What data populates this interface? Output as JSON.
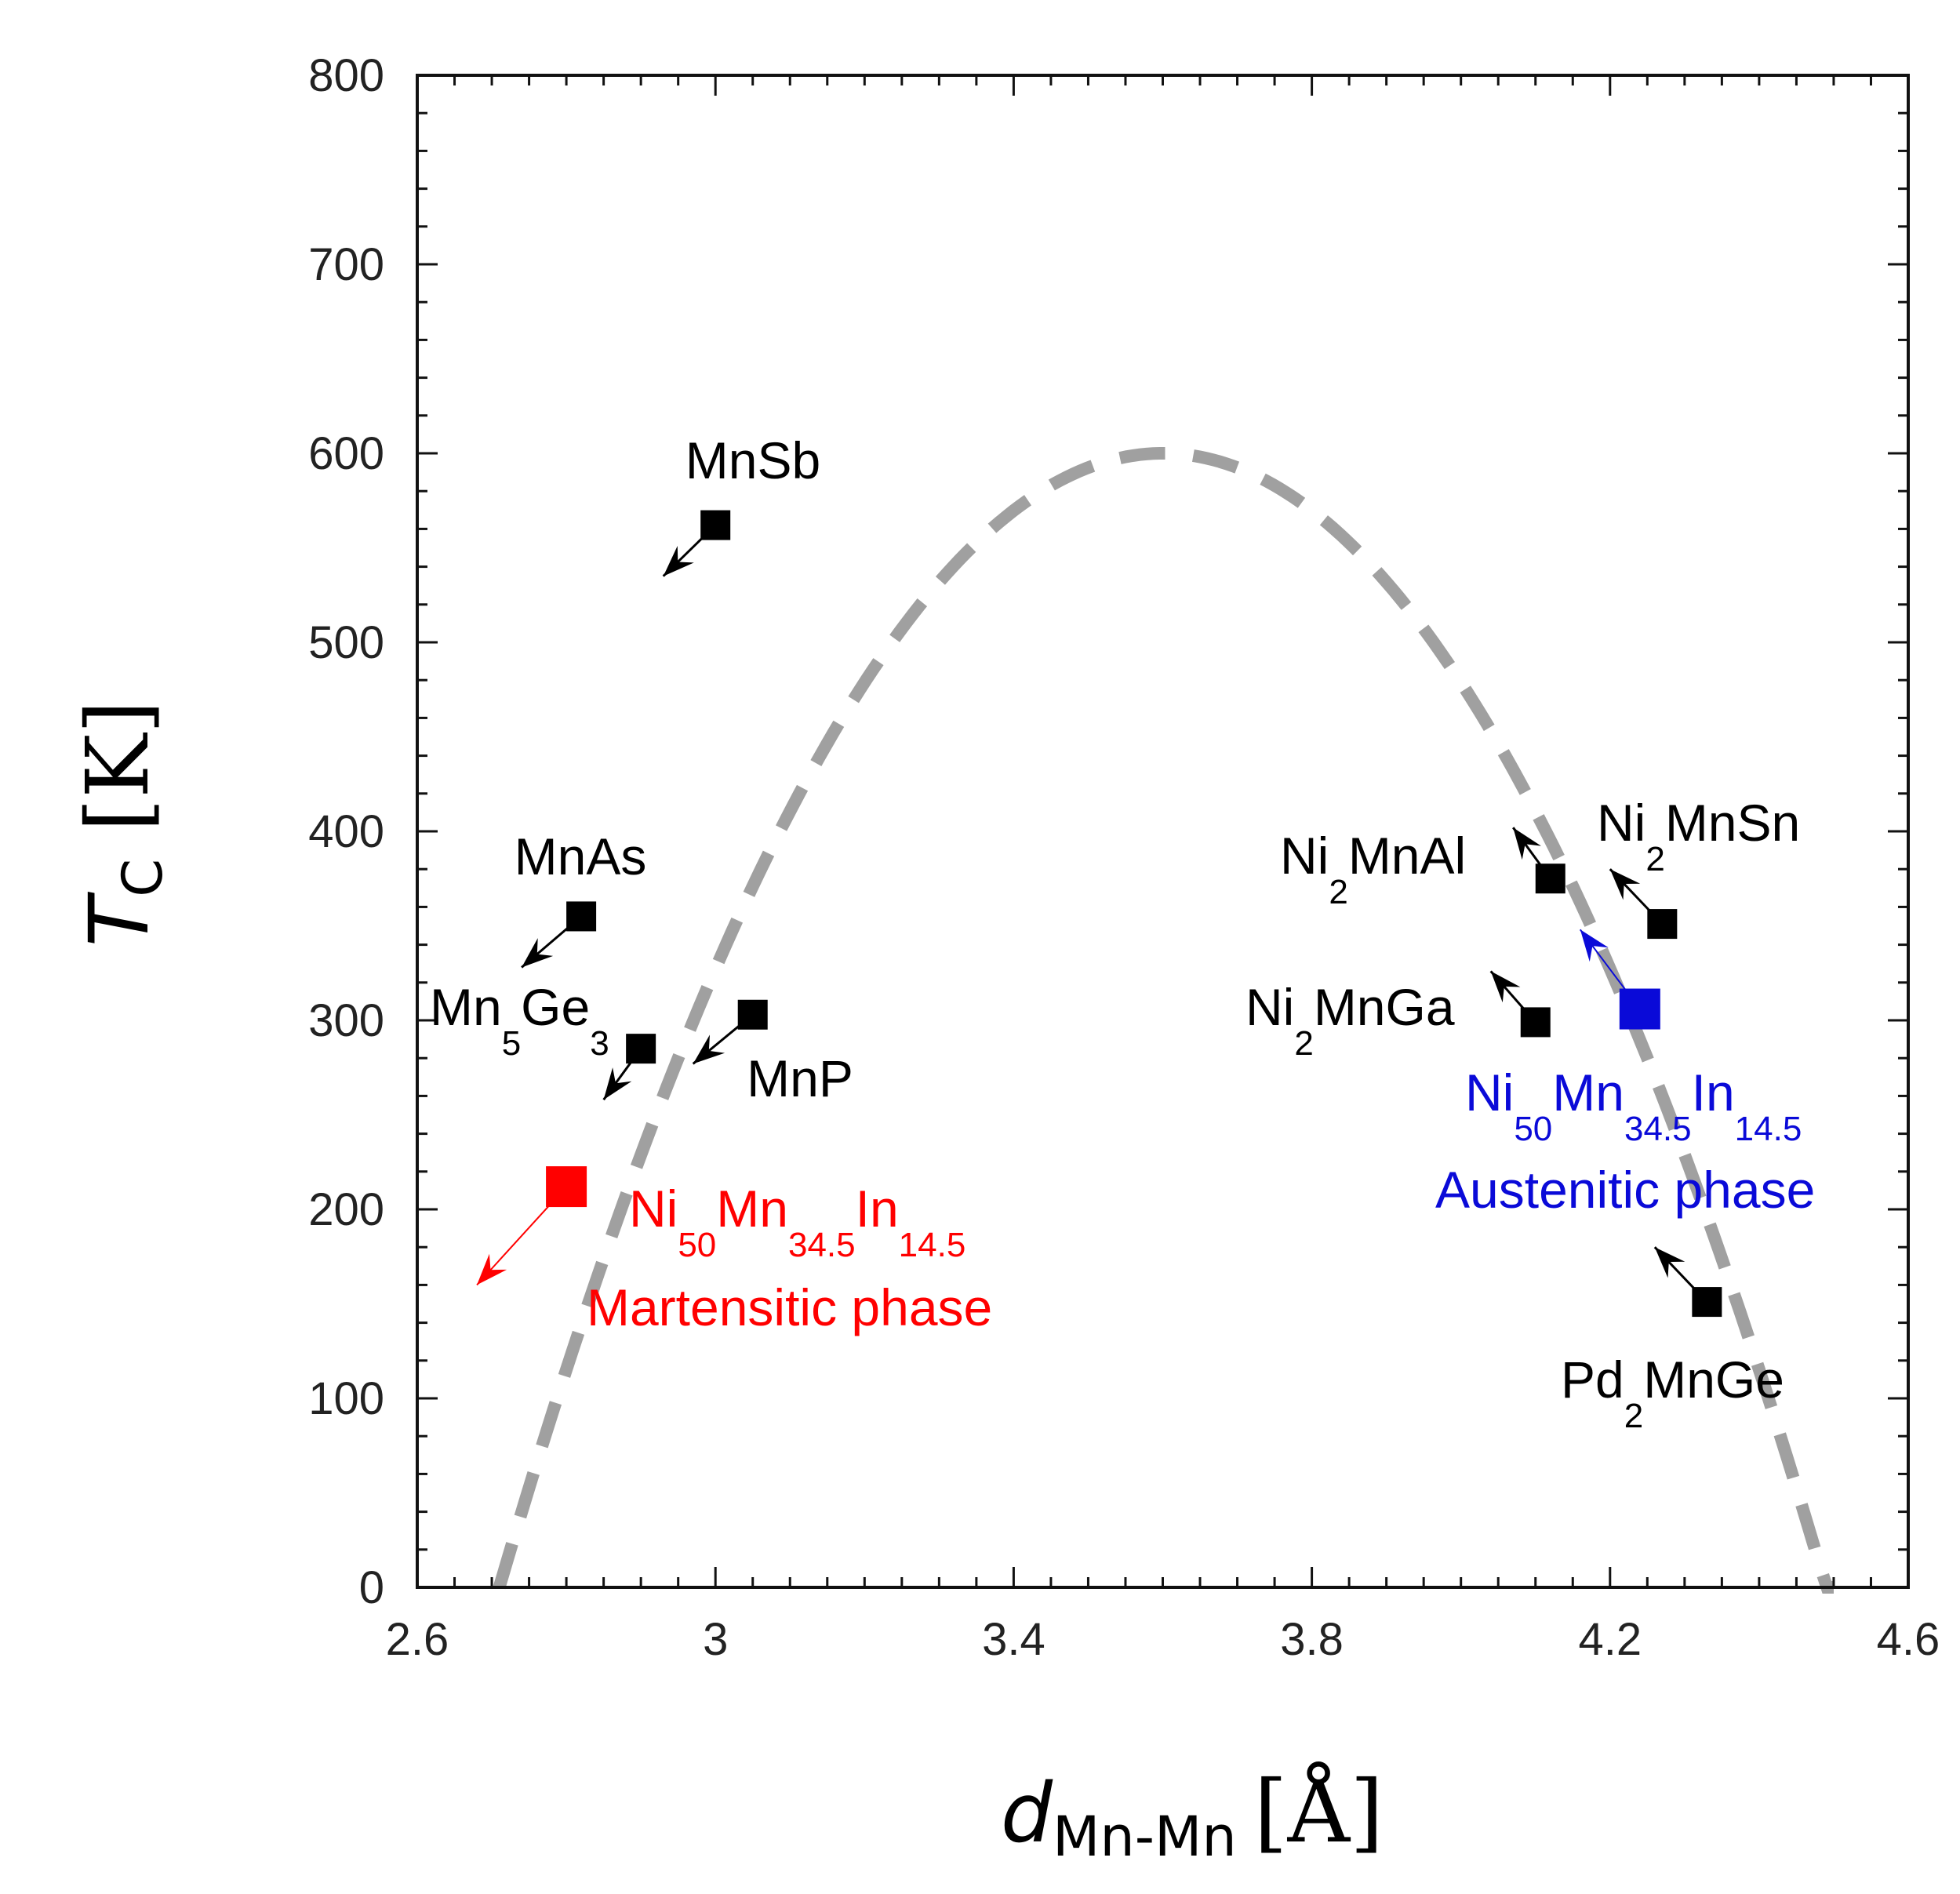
{
  "chart_data": {
    "type": "scatter",
    "title": "",
    "xlabel": {
      "symbol": "d",
      "subscript": "Mn-Mn",
      "unit": "[Å]"
    },
    "ylabel": {
      "symbol": "T",
      "subscript": "C",
      "unit": "[K]"
    },
    "xlim": [
      2.6,
      4.6
    ],
    "ylim": [
      0,
      800
    ],
    "xticks": [
      2.6,
      3.0,
      3.4,
      3.8,
      4.2,
      4.6
    ],
    "xtick_labels": [
      "2.6",
      "3",
      "3.4",
      "3.8",
      "4.2",
      "4.6"
    ],
    "yticks": [
      0,
      100,
      200,
      300,
      400,
      500,
      600,
      700,
      800
    ],
    "ytick_labels": [
      "0",
      "100",
      "200",
      "300",
      "400",
      "500",
      "600",
      "700",
      "800"
    ],
    "curve": {
      "style": "dashed",
      "color": "#a0a0a0",
      "shape": "parabola",
      "peak": [
        3.6,
        600
      ],
      "x_intercepts": [
        2.71,
        4.5
      ]
    },
    "points": [
      {
        "name": "MnSb",
        "x": 3.0,
        "y": 562,
        "color": "#000000",
        "arrow_to": [
          2.93,
          535
        ]
      },
      {
        "name": "MnAs",
        "x": 2.82,
        "y": 355,
        "color": "#000000",
        "arrow_to": [
          2.74,
          328
        ]
      },
      {
        "name": "Mn5Ge3",
        "x": 2.9,
        "y": 285,
        "color": "#000000",
        "arrow_to": [
          2.85,
          258
        ]
      },
      {
        "name": "MnP",
        "x": 3.05,
        "y": 303,
        "color": "#000000",
        "arrow_to": [
          2.97,
          277
        ]
      },
      {
        "name": "Ni2MnAl",
        "x": 4.12,
        "y": 375,
        "color": "#000000",
        "arrow_to": [
          4.07,
          402
        ]
      },
      {
        "name": "Ni2MnSn",
        "x": 4.27,
        "y": 351,
        "color": "#000000",
        "arrow_to": [
          4.2,
          380
        ]
      },
      {
        "name": "Ni2MnGa",
        "x": 4.1,
        "y": 299,
        "color": "#000000",
        "arrow_to": [
          4.04,
          326
        ]
      },
      {
        "name": "Pd2MnGe",
        "x": 4.33,
        "y": 151,
        "color": "#000000",
        "arrow_to": [
          4.26,
          180
        ]
      },
      {
        "name": "Ni50Mn34.5In14.5 Austenitic phase",
        "x": 4.24,
        "y": 306,
        "color": "#0a0ad8",
        "arrow_to": [
          4.16,
          348
        ]
      },
      {
        "name": "Ni50Mn34.5In14.5 Martensitic phase",
        "x": 2.8,
        "y": 212,
        "color": "#ff0000",
        "arrow_to": [
          2.68,
          160
        ]
      }
    ],
    "annotations": [
      {
        "id": "mnsb",
        "parts": [
          {
            "t": "MnSb"
          }
        ],
        "color": "#000000"
      },
      {
        "id": "mnas",
        "parts": [
          {
            "t": "MnAs"
          }
        ],
        "color": "#000000"
      },
      {
        "id": "mn5ge3",
        "parts": [
          {
            "t": "Mn"
          },
          {
            "t": "5",
            "sub": true
          },
          {
            "t": "Ge"
          },
          {
            "t": "3",
            "sub": true
          }
        ],
        "color": "#000000"
      },
      {
        "id": "mnp",
        "parts": [
          {
            "t": "MnP"
          }
        ],
        "color": "#000000"
      },
      {
        "id": "ni2mnal",
        "parts": [
          {
            "t": "Ni"
          },
          {
            "t": "2",
            "sub": true
          },
          {
            "t": "MnAl"
          }
        ],
        "color": "#000000"
      },
      {
        "id": "ni2mnsn",
        "parts": [
          {
            "t": "Ni"
          },
          {
            "t": "2",
            "sub": true
          },
          {
            "t": "MnSn"
          }
        ],
        "color": "#000000"
      },
      {
        "id": "ni2mnga",
        "parts": [
          {
            "t": "Ni"
          },
          {
            "t": "2",
            "sub": true
          },
          {
            "t": "MnGa"
          }
        ],
        "color": "#000000"
      },
      {
        "id": "pd2mnge",
        "parts": [
          {
            "t": "Pd"
          },
          {
            "t": "2",
            "sub": true
          },
          {
            "t": "MnGe"
          }
        ],
        "color": "#000000"
      },
      {
        "id": "ni-aus",
        "parts": [
          {
            "t": "Ni"
          },
          {
            "t": "50",
            "sub": true
          },
          {
            "t": "Mn"
          },
          {
            "t": "34.5",
            "sub": true
          },
          {
            "t": "In"
          },
          {
            "t": "14.5",
            "sub": true
          }
        ],
        "color": "#0a0ad8"
      },
      {
        "id": "aus-phase",
        "parts": [
          {
            "t": "Austenitic phase"
          }
        ],
        "color": "#0a0ad8"
      },
      {
        "id": "ni-mart",
        "parts": [
          {
            "t": "Ni"
          },
          {
            "t": "50",
            "sub": true
          },
          {
            "t": "Mn"
          },
          {
            "t": "34.5",
            "sub": true
          },
          {
            "t": "In"
          },
          {
            "t": "14.5",
            "sub": true
          }
        ],
        "color": "#ff0000"
      },
      {
        "id": "mart-phase",
        "parts": [
          {
            "t": "Martensitic phase"
          }
        ],
        "color": "#ff0000"
      }
    ]
  }
}
